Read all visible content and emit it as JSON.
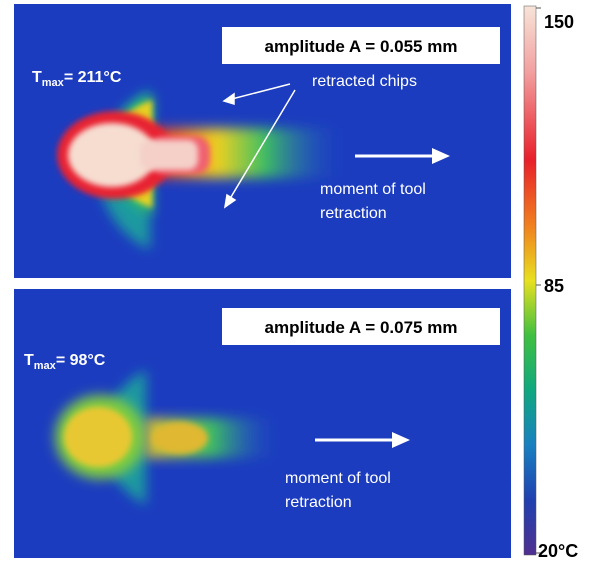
{
  "panels": [
    {
      "amplitude": "amplitude A = 0.055 mm",
      "tmax": {
        "symbol": "T",
        "subscript": "max",
        "value": "= 211°C"
      },
      "chips": "retracted chips",
      "retraction": [
        "moment of tool",
        "retraction"
      ]
    },
    {
      "amplitude": "amplitude A = 0.075 mm",
      "tmax": {
        "symbol": "T",
        "subscript": "max",
        "value": "= 98°C"
      },
      "retraction": [
        "moment of tool",
        "retraction"
      ]
    }
  ],
  "colorbar": {
    "labels": [
      "150",
      "85",
      "20°C"
    ]
  }
}
